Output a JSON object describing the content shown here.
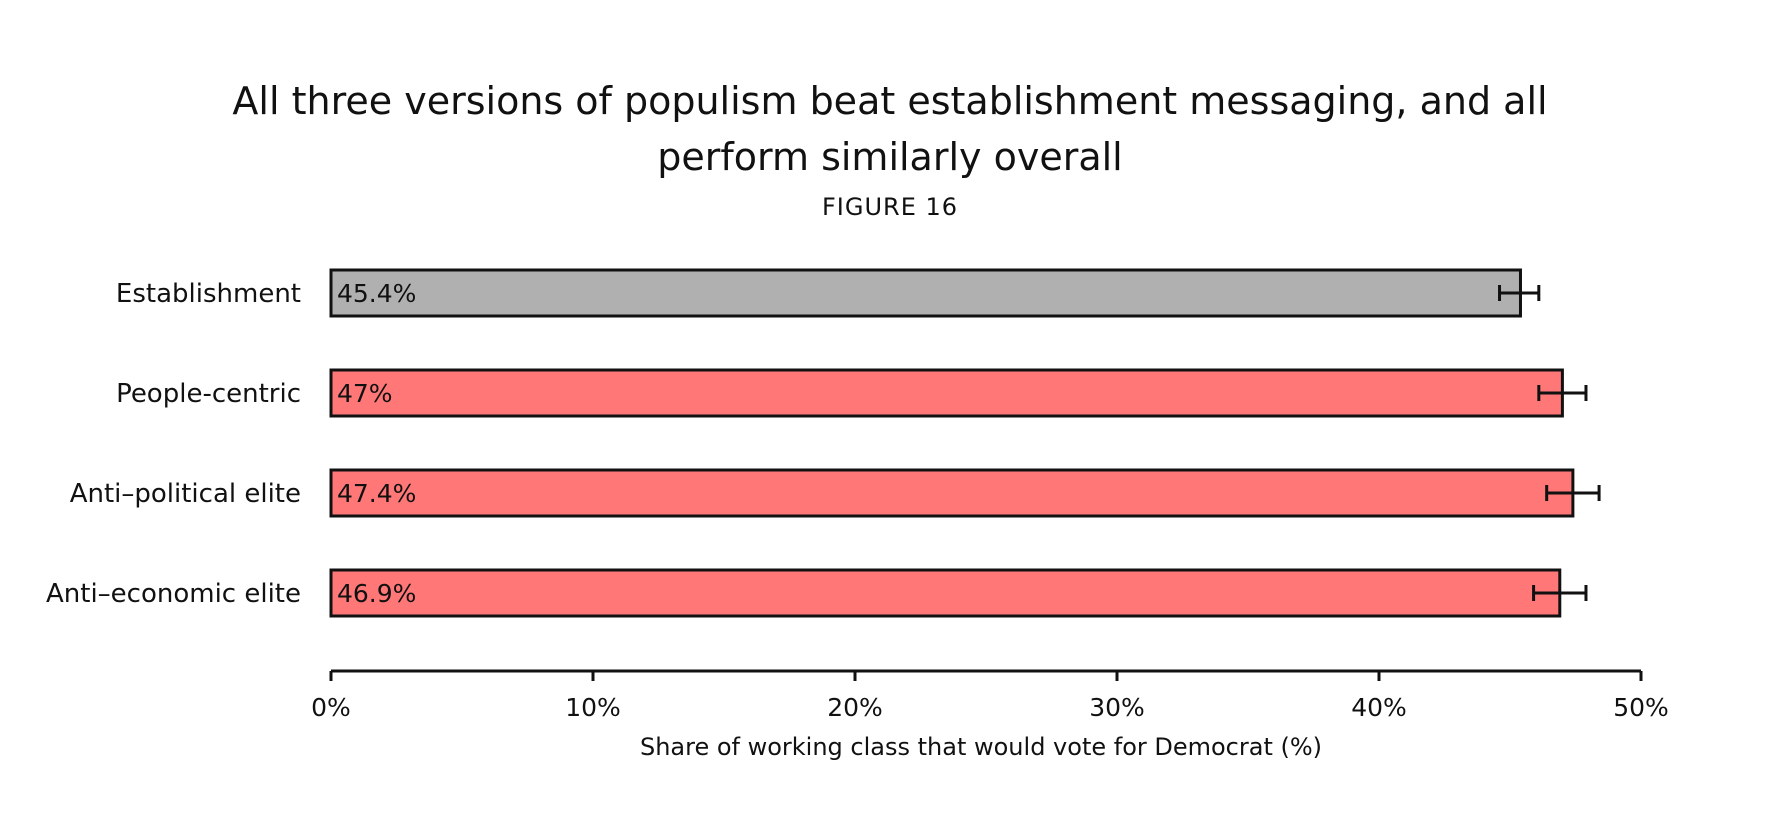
{
  "chart_data": {
    "type": "bar",
    "orientation": "horizontal",
    "title_lines": [
      "All three versions of populism beat establishment messaging, and all",
      "perform similarly overall"
    ],
    "subtitle": "FIGURE 16",
    "xlabel": "Share of working class that would vote for Democrat (%)",
    "xlim": [
      0,
      50
    ],
    "xticks": [
      0,
      10,
      20,
      30,
      40,
      50
    ],
    "xtick_labels": [
      "0%",
      "10%",
      "20%",
      "30%",
      "40%",
      "50%"
    ],
    "grid": false,
    "categories": [
      "Establishment",
      "People-centric",
      "Anti–political elite",
      "Anti–economic elite"
    ],
    "values": [
      45.4,
      47,
      47.4,
      46.9
    ],
    "value_labels": [
      "45.4%",
      "47%",
      "47.4%",
      "46.9%"
    ],
    "error_low": [
      44.6,
      46.1,
      46.4,
      45.9
    ],
    "error_high": [
      46.1,
      47.9,
      48.4,
      47.9
    ],
    "colors": [
      "#b0b0b0",
      "#ff7777",
      "#ff7777",
      "#ff7777"
    ],
    "outline_color": "#111111"
  }
}
